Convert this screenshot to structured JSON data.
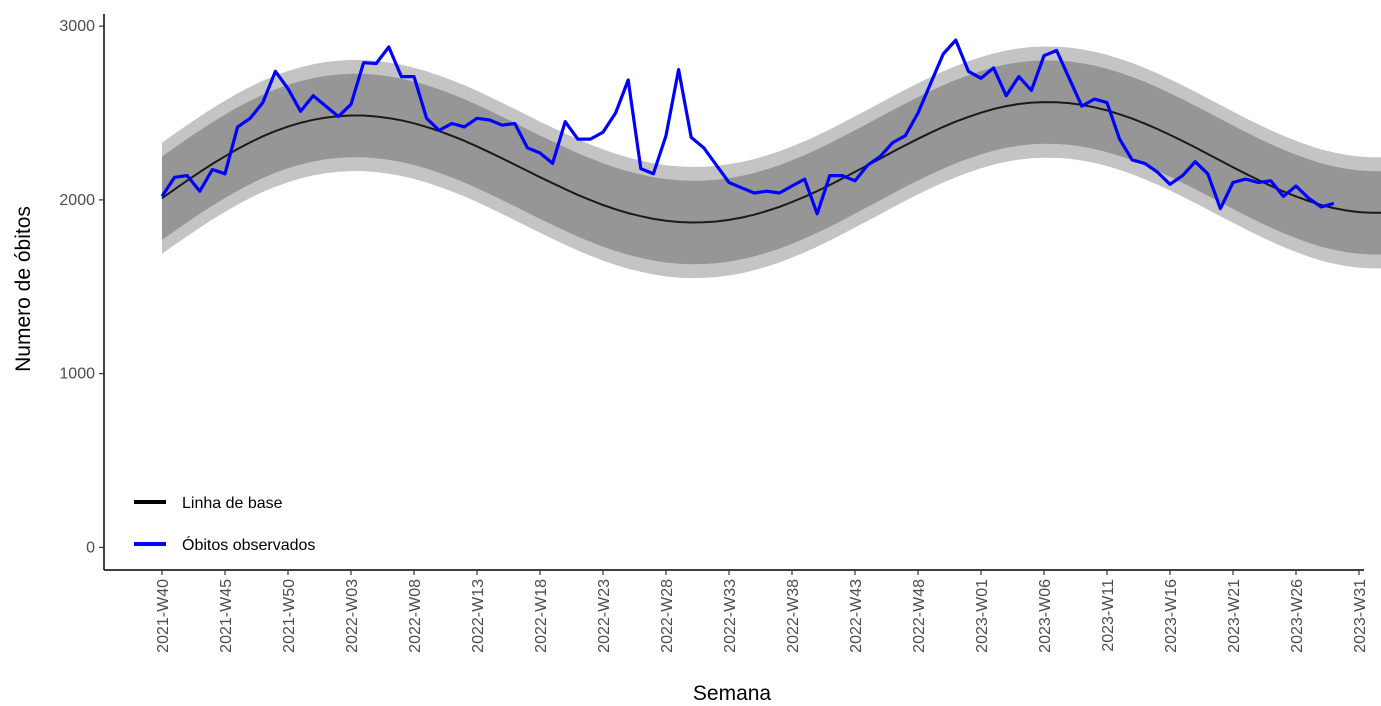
{
  "chart_data": {
    "type": "line",
    "title": "",
    "xlabel": "Semana",
    "ylabel": "Numero de óbitos",
    "ylim": [
      -130,
      3070
    ],
    "y_ticks": [
      0,
      1000,
      2000,
      3000
    ],
    "x_tick_labels": [
      "2021-W40",
      "2021-W45",
      "2021-W50",
      "2022-W03",
      "2022-W08",
      "2022-W13",
      "2022-W18",
      "2022-W23",
      "2022-W28",
      "2022-W33",
      "2022-W38",
      "2022-W43",
      "2022-W48",
      "2023-W01",
      "2023-W06",
      "2023-W11",
      "2023-W16",
      "2023-W21",
      "2023-W26",
      "2023-W31"
    ],
    "x_weeks_first": "2021-W40",
    "grid": false,
    "legend": {
      "position": "bottom-left",
      "entries": [
        {
          "label": "Linha de base",
          "color": "#000000"
        },
        {
          "label": "Óbitos observados",
          "color": "#0000ff"
        }
      ]
    },
    "bands": {
      "outer_color": "#c4c4c4",
      "inner_color": "#969696",
      "note": "prediction bands around baseline"
    },
    "baseline": {
      "name": "Linha de base",
      "color": "#1a1a1a",
      "values": [
        2010,
        2061,
        2111,
        2160,
        2207,
        2251,
        2293,
        2331,
        2366,
        2396,
        2422,
        2444,
        2461,
        2474,
        2482,
        2486,
        2486,
        2480,
        2471,
        2458,
        2441,
        2420,
        2396,
        2369,
        2340,
        2308,
        2274,
        2239,
        2203,
        2167,
        2131,
        2096,
        2062,
        2029,
        1999,
        1971,
        1946,
        1924,
        1906,
        1891,
        1880,
        1873,
        1870,
        1871,
        1876,
        1885,
        1898,
        1915,
        1936,
        1960,
        1988,
        2018,
        2051,
        2086,
        2123,
        2161,
        2199,
        2238,
        2277,
        2315,
        2352,
        2387,
        2420,
        2451,
        2478,
        2502,
        2523,
        2540,
        2552,
        2560,
        2563,
        2562,
        2557,
        2547,
        2533,
        2515,
        2493,
        2468,
        2439,
        2408,
        2374,
        2339,
        2302,
        2264,
        2226,
        2188,
        2151,
        2115,
        2081,
        2049,
        2020,
        1994,
        1971,
        1953,
        1939,
        1930,
        1926,
        1926
      ],
      "band_inner_half": 240,
      "band_outer_half": 320
    },
    "series": [
      {
        "name": "Óbitos observados",
        "color": "#0000ff",
        "values": [
          2020,
          2130,
          2140,
          2050,
          2175,
          2150,
          2420,
          2470,
          2560,
          2740,
          2640,
          2510,
          2600,
          2540,
          2480,
          2550,
          2790,
          2785,
          2880,
          2710,
          2710,
          2470,
          2400,
          2440,
          2420,
          2470,
          2460,
          2430,
          2440,
          2300,
          2270,
          2210,
          2450,
          2350,
          2350,
          2390,
          2500,
          2690,
          2180,
          2150,
          2370,
          2750,
          2360,
          2300,
          2200,
          2100,
          2070,
          2040,
          2050,
          2040,
          2080,
          2120,
          1920,
          2140,
          2140,
          2110,
          2200,
          2250,
          2330,
          2370,
          2500,
          2670,
          2840,
          2920,
          2740,
          2700,
          2760,
          2600,
          2710,
          2630,
          2830,
          2860,
          2700,
          2540,
          2580,
          2560,
          2350,
          2230,
          2210,
          2160,
          2090,
          2140,
          2220,
          2150,
          1950,
          2100,
          2120,
          2100,
          2110,
          2020,
          2080,
          2010,
          1960,
          1980
        ]
      }
    ]
  }
}
